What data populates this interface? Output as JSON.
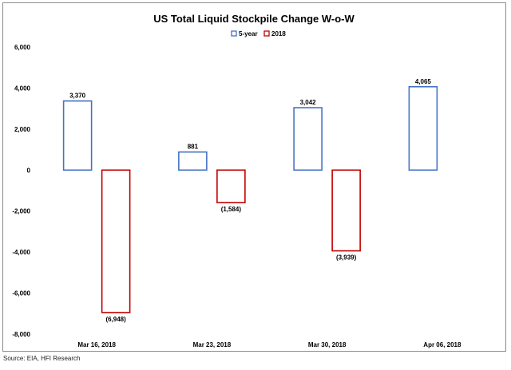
{
  "chart_data": {
    "type": "bar",
    "title": "US Total Liquid Stockpile Change W-o-W",
    "xlabel": "",
    "ylabel": "",
    "categories": [
      "Mar 16, 2018",
      "Mar 23, 2018",
      "Mar 30, 2018",
      "Apr 06, 2018"
    ],
    "series": [
      {
        "name": "5-year",
        "color": "#4472C4",
        "values": [
          3370,
          881,
          3042,
          4065
        ],
        "labels": [
          "3,370",
          "881",
          "3,042",
          "4,065"
        ]
      },
      {
        "name": "2018",
        "color": "#C00000",
        "values": [
          -6948,
          -1584,
          -3939,
          null
        ],
        "labels": [
          "(6,948)",
          "(1,584)",
          "(3,939)",
          ""
        ]
      }
    ],
    "ylim": [
      -8000,
      6000
    ],
    "yticks": [
      -8000,
      -6000,
      -4000,
      -2000,
      0,
      2000,
      4000,
      6000
    ],
    "ytick_labels": [
      "-8,000",
      "-6,000",
      "-4,000",
      "-2,000",
      "0",
      "2,000",
      "4,000",
      "6,000"
    ],
    "grid": false,
    "legend_position": "top-center",
    "bar_style": "outline"
  },
  "footer": {
    "source": "Source: EIA, HFI Research"
  }
}
